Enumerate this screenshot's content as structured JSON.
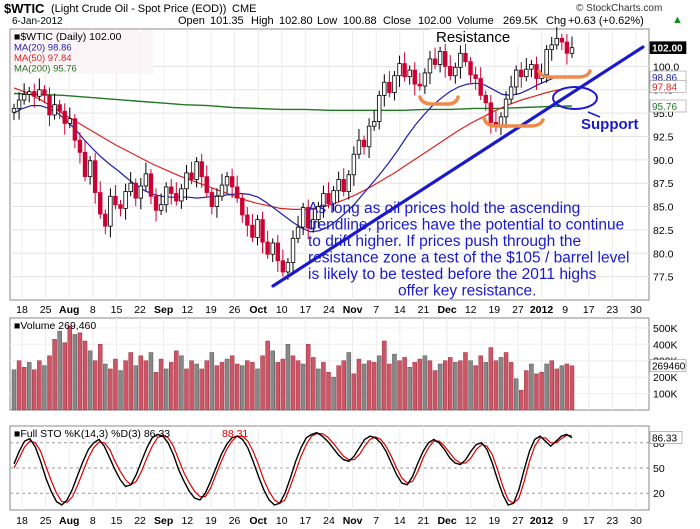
{
  "header": {
    "symbol": "$WTIC",
    "description": "(Light Crude Oil - Spot Price (EOD))",
    "exchange": "CME",
    "date": "6-Jan-2012",
    "open_label": "Open",
    "open_value": "101.35",
    "high_label": "High",
    "high_value": "102.80",
    "low_label": "Low",
    "low_value": "100.88",
    "close_label": "Close",
    "close_value": "102.00",
    "volume_label": "Volume",
    "volume_value": "269.5K",
    "chg_label": "Chg",
    "chg_value": "+0.63 (+0.62%)",
    "trend_arrow": "▲",
    "watermark": "© StockCharts.com"
  },
  "colors": {
    "up_candle": "#000000",
    "down_candle": "#cc0033",
    "ma20": "#1f1fa8",
    "ma50": "#dd2222",
    "ma200": "#227722",
    "trendline": "#1a1acc",
    "annotation_text": "#1a1acc",
    "bracket": "#f08a4b",
    "volume_down": "#cc5566",
    "volume_up": "#888888",
    "sto_k": "#000000",
    "sto_d": "#dd0000",
    "plot_bg": "#ffffff",
    "legend_bg": "#f4e4ea"
  },
  "chart_data": [
    {
      "type": "candlestick",
      "panel": "price",
      "legend": [
        {
          "label": "■$WTIC (Daily) 102.00",
          "color": "#000000"
        },
        {
          "label": "MA(20) 98.86",
          "color": "#1f1fa8"
        },
        {
          "label": "MA(50) 97.84",
          "color": "#dd2222"
        },
        {
          "label": "MA(200) 95.76",
          "color": "#227722"
        }
      ],
      "yticks": [
        77.5,
        80.0,
        82.5,
        85.0,
        87.5,
        90.0,
        92.5,
        95.0,
        97.5,
        100.0
      ],
      "ylim": [
        75.0,
        104.0
      ],
      "price_tags": [
        {
          "label": "102.00",
          "value": 102.0
        },
        {
          "label": "98.86",
          "value": 98.86
        },
        {
          "label": "97.84",
          "value": 97.84
        },
        {
          "label": "95.76",
          "value": 95.76
        }
      ],
      "closes": [
        95.5,
        96.4,
        97.0,
        97.3,
        96.8,
        97.5,
        96.9,
        94.8,
        95.9,
        95.2,
        93.9,
        94.4,
        92.1,
        90.8,
        88.2,
        89.9,
        86.5,
        84.2,
        82.9,
        86.1,
        85.2,
        84.8,
        86.6,
        87.5,
        85.9,
        87.2,
        88.5,
        86.1,
        84.6,
        85.2,
        87.1,
        86.4,
        85.6,
        86.9,
        88.6,
        87.9,
        89.8,
        88.2,
        86.5,
        85.0,
        86.1,
        87.3,
        88.2,
        87.1,
        85.9,
        84.1,
        83.0,
        81.7,
        83.6,
        81.2,
        79.9,
        81.1,
        79.2,
        78.0,
        79.0,
        81.6,
        82.8,
        84.9,
        82.7,
        83.6,
        85.0,
        86.4,
        85.3,
        86.7,
        87.9,
        86.6,
        88.4,
        90.6,
        92.1,
        91.4,
        93.6,
        94.1,
        96.9,
        98.3,
        97.2,
        99.0,
        100.3,
        98.9,
        99.6,
        98.1,
        97.9,
        99.3,
        100.8,
        100.2,
        101.6,
        100.0,
        99.0,
        99.9,
        101.4,
        100.5,
        99.1,
        98.7,
        96.9,
        96.1,
        94.0,
        93.5,
        94.6,
        96.5,
        97.8,
        99.6,
        98.9,
        99.7,
        100.2,
        98.7,
        99.1,
        101.8,
        102.3,
        103.0,
        102.6,
        101.4,
        102.0
      ],
      "ma20": [
        95.0,
        95.5,
        95.8,
        95.8,
        95.5,
        95.0,
        94.2,
        93.3,
        92.2,
        91.2,
        90.3,
        89.5,
        88.8,
        88.0,
        87.3,
        86.7,
        86.3,
        86.1,
        86.0,
        86.0,
        86.0,
        85.9,
        86.0,
        86.1,
        86.2,
        86.3,
        86.4,
        86.3,
        86.0,
        85.4,
        84.7,
        84.0,
        83.3,
        82.7,
        82.3,
        82.4,
        82.8,
        83.5,
        84.3,
        85.2,
        86.3,
        87.4,
        88.5,
        89.7,
        91.0,
        92.4,
        93.7,
        94.8,
        95.8,
        96.6,
        97.3,
        97.8,
        98.1,
        98.2,
        98.0,
        97.5,
        97.0,
        96.9,
        97.1,
        97.5,
        98.0,
        98.4,
        98.8,
        98.9,
        98.9
      ],
      "ma50": [
        97.7,
        97.2,
        96.5,
        95.7,
        94.8,
        94.0,
        93.2,
        92.4,
        91.6,
        90.9,
        90.2,
        89.5,
        88.9,
        88.3,
        87.8,
        87.3,
        86.8,
        86.3,
        85.8,
        85.4,
        85.1,
        84.8,
        84.7,
        84.7,
        84.9,
        85.2,
        85.7,
        86.3,
        87.0,
        87.8,
        88.6,
        89.5,
        90.4,
        91.3,
        92.2,
        93.1,
        93.9,
        94.6,
        95.3,
        95.9,
        96.4,
        96.8,
        97.2,
        97.5,
        97.8
      ],
      "ma200": [
        97.1,
        97.0,
        96.9,
        96.7,
        96.5,
        96.3,
        96.1,
        95.9,
        95.8,
        95.6,
        95.5,
        95.4,
        95.4,
        95.3,
        95.3,
        95.3,
        95.3,
        95.4,
        95.4,
        95.5,
        95.5,
        95.6,
        95.7,
        95.76
      ],
      "annotations": [
        {
          "text": "Resistance",
          "kind": "label"
        },
        {
          "text": "Support",
          "kind": "label"
        },
        {
          "text": "As long as oil prices hold the ascending trendline, prices have the potential to continue to drift higher. If prices push through the resistance zone a test of the $105 / barrel level is likely to be tested before the 2011 highs offer key resistance.",
          "kind": "note"
        }
      ],
      "trendline": {
        "from": {
          "x": "Oct 3",
          "y": 76.5
        },
        "to": {
          "x": "Jan 31",
          "y": 101.5
        }
      },
      "resistance_level": 101.5,
      "support_brackets": [
        94.8,
        92.8,
        98.8
      ]
    },
    {
      "type": "bar",
      "panel": "volume",
      "legend": [
        {
          "label": "■Volume 269,460",
          "color": "#cc5566"
        }
      ],
      "yticks_labels": [
        "500K",
        "400K",
        "300K",
        "200K",
        "100K"
      ],
      "yticks": [
        500,
        400,
        300,
        200,
        100
      ],
      "ylim": [
        0,
        560
      ],
      "value_tag": "269460",
      "value_tag_num": 269.46,
      "values": [
        245,
        300,
        260,
        290,
        245,
        300,
        270,
        330,
        430,
        480,
        410,
        510,
        460,
        470,
        420,
        360,
        300,
        400,
        280,
        250,
        310,
        240,
        300,
        350,
        270,
        330,
        300,
        350,
        230,
        310,
        250,
        290,
        360,
        330,
        250,
        300,
        280,
        250,
        300,
        350,
        270,
        290,
        310,
        330,
        280,
        270,
        300,
        290,
        250,
        330,
        420,
        360,
        290,
        310,
        400,
        330,
        300,
        280,
        400,
        320,
        250,
        290,
        230,
        200,
        270,
        300,
        350,
        220,
        310,
        280,
        300,
        290,
        330,
        420,
        280,
        340,
        300,
        320,
        260,
        290,
        310,
        330,
        300,
        240,
        280,
        300,
        320,
        290,
        300,
        350,
        300,
        270,
        330,
        290,
        380,
        300,
        320,
        350,
        290,
        190,
        120,
        240,
        280,
        220,
        230,
        280,
        300,
        250,
        270,
        280,
        269
      ]
    },
    {
      "type": "line",
      "panel": "stochastic",
      "legend": [
        {
          "label": "■Full STO %K(14,3) %D(3) 86.33",
          "color": "#000000"
        },
        {
          "label": "88.31",
          "color": "#dd0000"
        }
      ],
      "yticks": [
        80,
        50,
        20
      ],
      "ylim": [
        0,
        100
      ],
      "value_tag": "86.33",
      "k": [
        55,
        70,
        82,
        85,
        75,
        58,
        38,
        22,
        10,
        6,
        12,
        25,
        42,
        58,
        72,
        80,
        84,
        76,
        62,
        48,
        36,
        28,
        30,
        42,
        58,
        74,
        86,
        90,
        88,
        80,
        66,
        48,
        34,
        22,
        14,
        12,
        20,
        34,
        50,
        66,
        78,
        86,
        88,
        84,
        74,
        58,
        40,
        24,
        12,
        6,
        8,
        20,
        38,
        58,
        74,
        86,
        90,
        92,
        88,
        82,
        74,
        66,
        60,
        58,
        64,
        74,
        84,
        88,
        86,
        80,
        70,
        56,
        42,
        32,
        30,
        40,
        56,
        70,
        80,
        84,
        80,
        72,
        62,
        56,
        54,
        60,
        70,
        78,
        80,
        72,
        56,
        36,
        18,
        6,
        8,
        24,
        48,
        70,
        84,
        88,
        82,
        76,
        82,
        88,
        90,
        86
      ],
      "d": [
        50,
        62,
        75,
        82,
        80,
        70,
        52,
        35,
        20,
        10,
        9,
        16,
        30,
        46,
        62,
        74,
        81,
        80,
        72,
        58,
        46,
        36,
        30,
        34,
        46,
        62,
        76,
        86,
        89,
        86,
        76,
        60,
        44,
        32,
        22,
        16,
        16,
        26,
        42,
        58,
        72,
        82,
        88,
        88,
        82,
        70,
        54,
        36,
        22,
        12,
        8,
        12,
        28,
        46,
        64,
        78,
        88,
        91,
        91,
        87,
        80,
        72,
        64,
        60,
        60,
        66,
        76,
        84,
        87,
        84,
        76,
        64,
        50,
        38,
        32,
        34,
        46,
        62,
        74,
        82,
        82,
        76,
        68,
        60,
        56,
        56,
        62,
        72,
        78,
        76,
        66,
        48,
        28,
        12,
        8,
        14,
        34,
        58,
        76,
        86,
        86,
        80,
        80,
        85,
        89,
        88.31
      ]
    }
  ],
  "x_axis": {
    "labels": [
      {
        "text": "18",
        "bold": false
      },
      {
        "text": "25",
        "bold": false
      },
      {
        "text": "Aug",
        "bold": true
      },
      {
        "text": "8",
        "bold": false
      },
      {
        "text": "15",
        "bold": false
      },
      {
        "text": "22",
        "bold": false
      },
      {
        "text": "Sep",
        "bold": true
      },
      {
        "text": "12",
        "bold": false
      },
      {
        "text": "19",
        "bold": false
      },
      {
        "text": "26",
        "bold": false
      },
      {
        "text": "Oct",
        "bold": true
      },
      {
        "text": "10",
        "bold": false
      },
      {
        "text": "17",
        "bold": false
      },
      {
        "text": "24",
        "bold": false
      },
      {
        "text": "Nov",
        "bold": true
      },
      {
        "text": "7",
        "bold": false
      },
      {
        "text": "14",
        "bold": false
      },
      {
        "text": "21",
        "bold": false
      },
      {
        "text": "Dec",
        "bold": true
      },
      {
        "text": "12",
        "bold": false
      },
      {
        "text": "19",
        "bold": false
      },
      {
        "text": "27",
        "bold": false
      },
      {
        "text": "2012",
        "bold": true
      },
      {
        "text": "9",
        "bold": false
      },
      {
        "text": "17",
        "bold": false
      },
      {
        "text": "23",
        "bold": false
      },
      {
        "text": "30",
        "bold": false
      }
    ]
  }
}
